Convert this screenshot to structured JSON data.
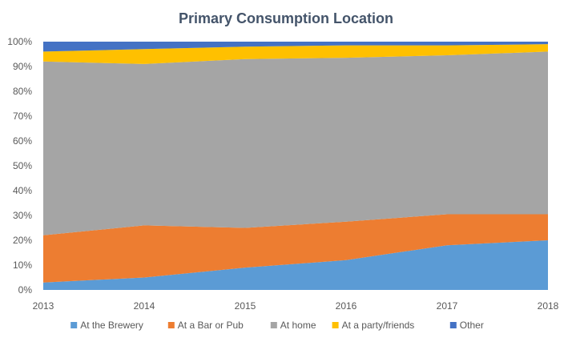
{
  "chart_data": {
    "type": "area",
    "stacked": "percent",
    "title": "Primary Consumption Location",
    "xlabel": "",
    "ylabel": "",
    "x": [
      "2013",
      "2014",
      "2015",
      "2016",
      "2017",
      "2018"
    ],
    "ylim": [
      0,
      100
    ],
    "yticks": [
      "0%",
      "10%",
      "20%",
      "30%",
      "40%",
      "50%",
      "60%",
      "70%",
      "80%",
      "90%",
      "100%"
    ],
    "grid": false,
    "legend_position": "bottom",
    "series": [
      {
        "name": "At the Brewery",
        "color": "#5B9BD5",
        "values": [
          3,
          5,
          9,
          12,
          18,
          20
        ]
      },
      {
        "name": "At a Bar or Pub",
        "color": "#ED7D31",
        "values": [
          19,
          21,
          16,
          15.5,
          12.5,
          10.5
        ]
      },
      {
        "name": "At home",
        "color": "#A5A5A5",
        "values": [
          70,
          65,
          68,
          66,
          64,
          65.5
        ]
      },
      {
        "name": "At a party/friends",
        "color": "#FFC000",
        "values": [
          4,
          6,
          5,
          5,
          4,
          3
        ]
      },
      {
        "name": "Other",
        "color": "#4472C4",
        "values": [
          4,
          3,
          2,
          1.5,
          1.5,
          1
        ]
      }
    ]
  }
}
